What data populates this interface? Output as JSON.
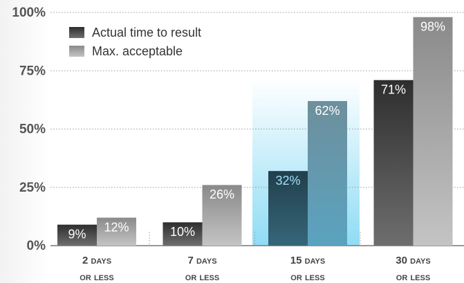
{
  "chart_data": {
    "type": "bar",
    "categories": [
      "2 days or less",
      "7 days or less",
      "15 days or less",
      "30 days or less"
    ],
    "series": [
      {
        "name": "Actual time to result",
        "color": "#4a4a4a",
        "values": [
          9,
          10,
          32,
          71
        ],
        "value_labels": [
          "9%",
          "10%",
          "32%",
          "71%"
        ]
      },
      {
        "name": "Max. acceptable",
        "color": "#a5a5a5",
        "values": [
          12,
          26,
          62,
          98
        ],
        "value_labels": [
          "12%",
          "26%",
          "62%",
          "98%"
        ]
      }
    ],
    "ylim": [
      0,
      100
    ],
    "yticks": [
      {
        "value": 0,
        "label": "0%"
      },
      {
        "value": 25,
        "label": "25%"
      },
      {
        "value": 50,
        "label": "50%"
      },
      {
        "value": 75,
        "label": "75%"
      },
      {
        "value": 100,
        "label": "100%"
      }
    ],
    "grid": true,
    "legend": "top-left",
    "highlight": 2
  }
}
